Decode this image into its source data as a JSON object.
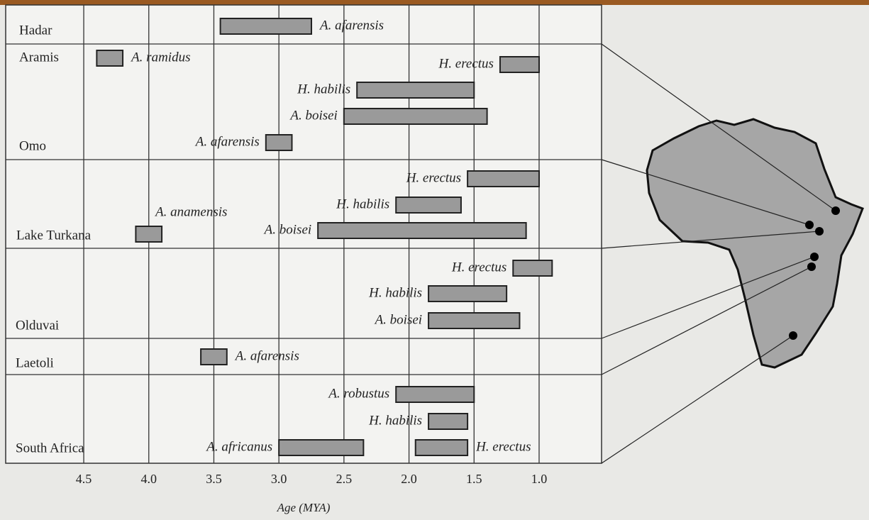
{
  "chart_data": {
    "type": "range-bar",
    "x_label": "Age (MYA)",
    "xlim": [
      5.1,
      0.52
    ],
    "xticks": [
      4.5,
      {
        "value": 4,
        "label": "4.0"
      },
      3.5,
      {
        "value": 3,
        "label": "3.0"
      },
      2.5,
      {
        "value": 2,
        "label": "2.0"
      },
      1.5,
      {
        "value": 1,
        "label": "1.0"
      }
    ],
    "grid": true,
    "color": "#9a9a9a",
    "sites": [
      {
        "name": "Hadar",
        "species": [
          {
            "name": "A. afarensis",
            "values": [
              3.45,
              2.75
            ]
          }
        ]
      },
      {
        "name": "Aramis",
        "species": [
          {
            "name": "A. ramidus",
            "values": [
              4.4,
              4.2
            ]
          }
        ]
      },
      {
        "name": "Omo",
        "species": [
          {
            "name": "H. erectus",
            "values": [
              1.3,
              1.0
            ]
          },
          {
            "name": "H. habilis",
            "values": [
              2.4,
              1.5
            ]
          },
          {
            "name": "A. boisei",
            "values": [
              2.5,
              1.4
            ]
          },
          {
            "name": "A. afarensis",
            "values": [
              3.1,
              2.9
            ]
          }
        ]
      },
      {
        "name": "Lake Turkana",
        "species": [
          {
            "name": "H. erectus",
            "values": [
              1.55,
              1.0
            ]
          },
          {
            "name": "H. habilis",
            "values": [
              2.1,
              1.6
            ]
          },
          {
            "name": "A. boisei",
            "values": [
              2.7,
              1.1
            ]
          },
          {
            "name": "A. anamensis",
            "values": [
              4.1,
              3.9
            ]
          }
        ]
      },
      {
        "name": "Olduvai",
        "species": [
          {
            "name": "H. erectus",
            "values": [
              1.2,
              0.9
            ]
          },
          {
            "name": "H. habilis",
            "values": [
              1.85,
              1.25
            ]
          },
          {
            "name": "A. boisei",
            "values": [
              1.85,
              1.15
            ]
          }
        ]
      },
      {
        "name": "Laetoli",
        "species": [
          {
            "name": "A. afarensis",
            "values": [
              3.6,
              3.4
            ]
          }
        ]
      },
      {
        "name": "South Africa",
        "species": [
          {
            "name": "A. robustus",
            "values": [
              2.1,
              1.5
            ]
          },
          {
            "name": "H. habilis",
            "values": [
              1.85,
              1.55
            ]
          },
          {
            "name": "A. africanus",
            "values": [
              3.0,
              2.35
            ]
          },
          {
            "name": "H. erectus",
            "values": [
              1.95,
              1.55
            ]
          }
        ]
      }
    ]
  }
}
